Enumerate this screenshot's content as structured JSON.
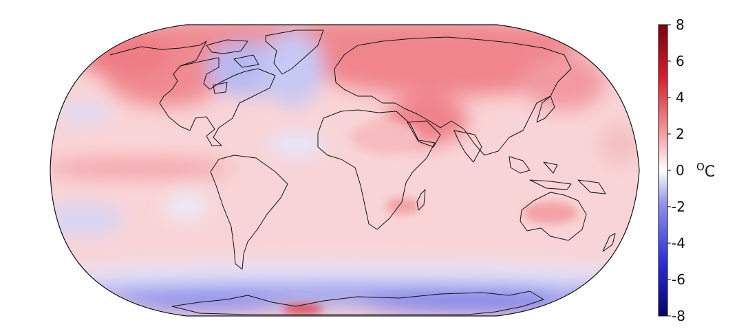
{
  "map": {
    "projection": "Robinson",
    "field": "temperature anomaly",
    "colormap": [
      "#08006e",
      "#2a2cd8",
      "#8d8fea",
      "#ffffff",
      "#f3a2a6",
      "#e0353f",
      "#7a0010"
    ],
    "ocean_pattern": "warm subtropics, cool North Atlantic and Southern Ocean"
  },
  "colorbar": {
    "min": -8,
    "max": 8,
    "ticks": [
      "8",
      "6",
      "4",
      "2",
      "0",
      "-2",
      "-4",
      "-6",
      "-8"
    ],
    "unit_symbol": "O",
    "unit_letter": "C"
  }
}
